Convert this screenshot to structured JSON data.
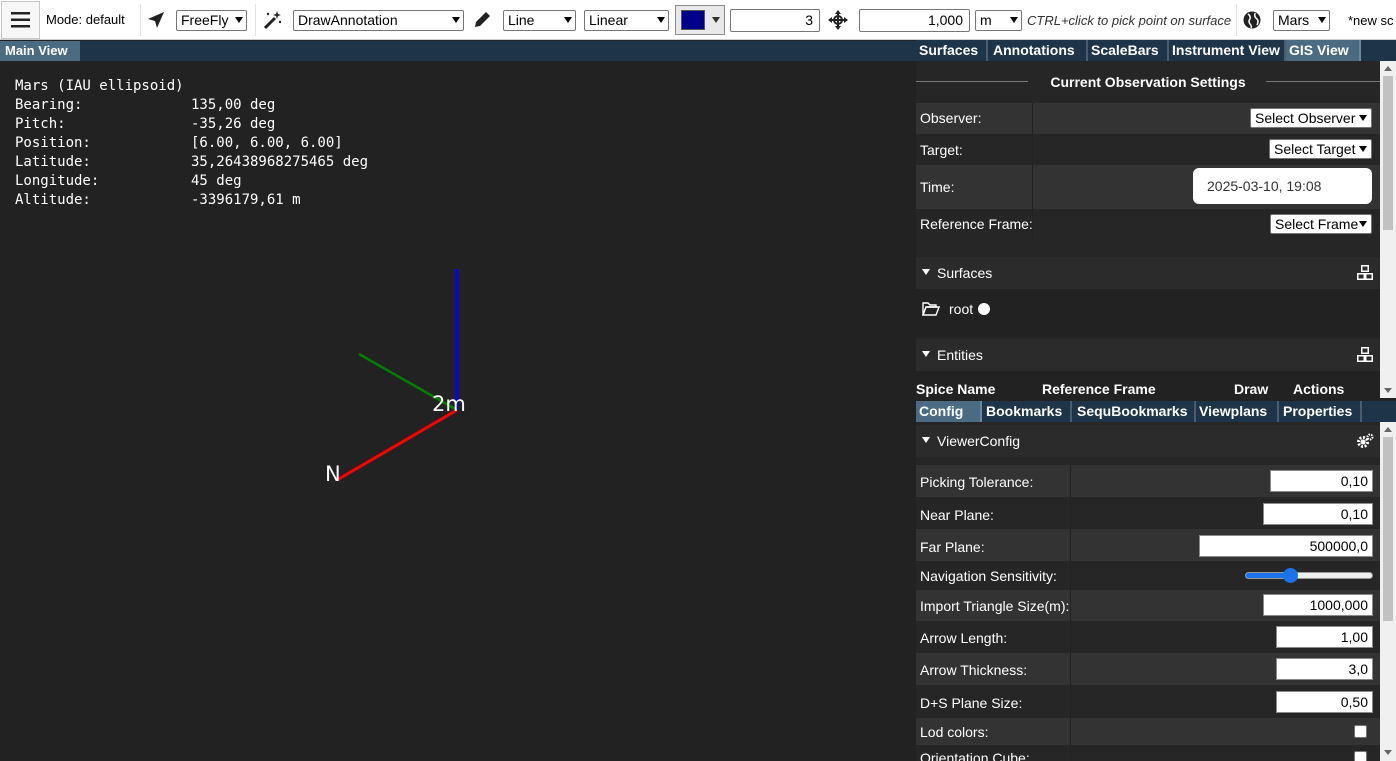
{
  "toolbar": {
    "mode_label": "Mode: default",
    "nav_mode": "FreeFly",
    "tool_mode": "DrawAnnotation",
    "geometry": "Line",
    "interpolation": "Linear",
    "color": "#00008b",
    "thickness": "3",
    "distance": "1,000",
    "unit": "m",
    "hint": "CTRL+click to pick point on surface",
    "body": "Mars",
    "scene_name": "*new sc"
  },
  "main_view": {
    "tab_label": "Main View",
    "info": {
      "body": "Mars (IAU ellipsoid)",
      "rows": [
        {
          "label": "Bearing:",
          "value": "135,00 deg"
        },
        {
          "label": "Pitch:",
          "value": "-35,26 deg"
        },
        {
          "label": "Position:",
          "value": "[6.00, 6.00, 6.00]"
        },
        {
          "label": "Latitude:",
          "value": "35,26438968275465 deg"
        },
        {
          "label": "Longitude:",
          "value": "45 deg"
        },
        {
          "label": "Altitude:",
          "value": "-3396179,61 m"
        }
      ]
    },
    "axes": {
      "north_label": "N",
      "scale_label": "2m",
      "colors": {
        "x": "#ff0000",
        "y": "#008000",
        "z": "#0000ff"
      }
    }
  },
  "top_tabs": [
    "Surfaces",
    "Annotations",
    "ScaleBars",
    "Instrument View",
    "GIS View"
  ],
  "top_active": "GIS View",
  "observation": {
    "title": "Current Observation Settings",
    "observer_label": "Observer:",
    "observer_value": "Select Observer",
    "target_label": "Target:",
    "target_value": "Select Target",
    "time_label": "Time:",
    "time_value": "2025-03-10, 19:08",
    "frame_label": "Reference Frame:",
    "frame_value": "Select Frame"
  },
  "surfaces": {
    "title": "Surfaces",
    "root_label": "root"
  },
  "entities": {
    "title": "Entities",
    "columns": [
      "Spice Name",
      "Reference Frame",
      "Draw",
      "Actions"
    ]
  },
  "bottom_tabs": [
    "Config",
    "Bookmarks",
    "SequBookmarks",
    "Viewplans",
    "Properties"
  ],
  "bottom_active": "Config",
  "viewer_config": {
    "title": "ViewerConfig",
    "picking_tolerance": {
      "label": "Picking Tolerance:",
      "value": "0,10"
    },
    "near_plane": {
      "label": "Near Plane:",
      "value": "0,10"
    },
    "far_plane": {
      "label": "Far Plane:",
      "value": "500000,0"
    },
    "nav_sensitivity": {
      "label": "Navigation Sensitivity:",
      "level": 0.35
    },
    "import_triangle": {
      "label": "Import Triangle Size(m):",
      "value": "1000,000"
    },
    "arrow_length": {
      "label": "Arrow Length:",
      "value": "1,00"
    },
    "arrow_thickness": {
      "label": "Arrow Thickness:",
      "value": "3,0"
    },
    "ds_plane": {
      "label": "D+S Plane Size:",
      "value": "0,50"
    },
    "lod_colors": {
      "label": "Lod colors:"
    },
    "orientation_cube": {
      "label": "Orientation Cube:"
    }
  }
}
